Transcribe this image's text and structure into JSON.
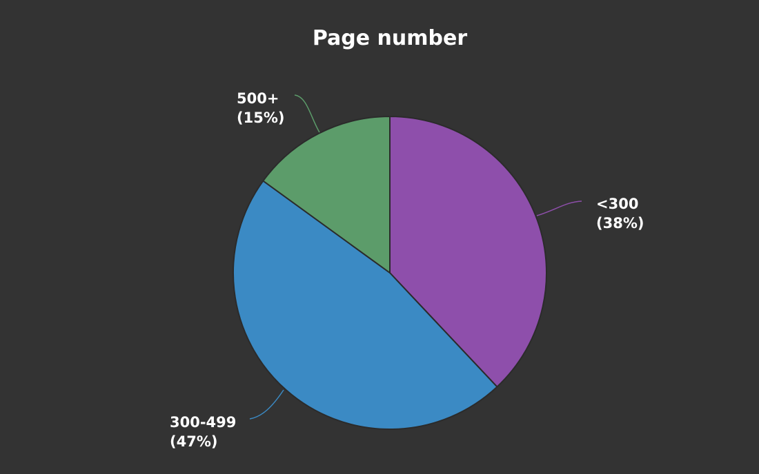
{
  "chart_data": {
    "type": "pie",
    "title": "Page number",
    "background": "#333333",
    "slices": [
      {
        "label": "<300",
        "value": 38,
        "percent_label": "(38%)",
        "color": "#8e4fab"
      },
      {
        "label": "300-499",
        "value": 47,
        "percent_label": "(47%)",
        "color": "#3b8ac4"
      },
      {
        "label": "500+",
        "value": 15,
        "percent_label": "(15%)",
        "color": "#5c9c6a"
      }
    ],
    "start_angle": "12 o'clock",
    "direction": "clockwise",
    "legend": "none"
  }
}
